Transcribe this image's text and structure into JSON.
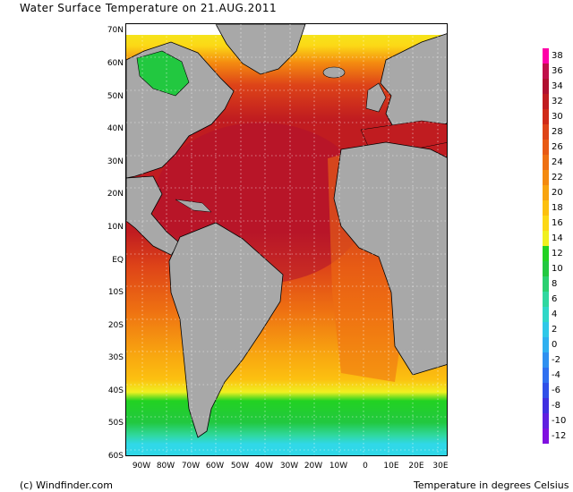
{
  "title": "Water Surface Temperature on 21.AUG.2011",
  "credit": "(c) Windfinder.com",
  "units_label": "Temperature in degrees Celsius",
  "lat_labels": [
    "70N",
    "60N",
    "50N",
    "40N",
    "30N",
    "20N",
    "10N",
    "EQ",
    "10S",
    "20S",
    "30S",
    "40S",
    "50S",
    "60S"
  ],
  "lon_labels": [
    "90W",
    "80W",
    "70W",
    "60W",
    "50W",
    "40W",
    "30W",
    "20W",
    "10W",
    "0",
    "10E",
    "20E",
    "30E"
  ],
  "colorbar": {
    "labels": [
      "38",
      "36",
      "34",
      "32",
      "30",
      "28",
      "26",
      "24",
      "22",
      "20",
      "18",
      "16",
      "14",
      "12",
      "10",
      "8",
      "6",
      "4",
      "2",
      "0",
      "-2",
      "-4",
      "-6",
      "-8",
      "-10",
      "-12"
    ],
    "colors": [
      "#ff00a8",
      "#c0104a",
      "#b01030",
      "#c01c20",
      "#d02a18",
      "#de4418",
      "#e85a14",
      "#ee7012",
      "#f48a10",
      "#f8a410",
      "#fcc010",
      "#fcd816",
      "#f0f020",
      "#22d222",
      "#22c840",
      "#2ad070",
      "#30d8a0",
      "#30d8c8",
      "#30c8e8",
      "#30b0f0",
      "#3090f0",
      "#3070f0",
      "#3050e8",
      "#4030e0",
      "#6020e0",
      "#8010e0"
    ]
  },
  "colors": {
    "land": "#a8a8a8",
    "ocean_tropical": "#c01c20",
    "ocean_warm": "#de4418",
    "ocean_mid": "#f48a10",
    "ocean_cool": "#fcd816",
    "ocean_cold": "#22c840",
    "ocean_polar": "#30d8e8",
    "ice": "#ffffff"
  }
}
